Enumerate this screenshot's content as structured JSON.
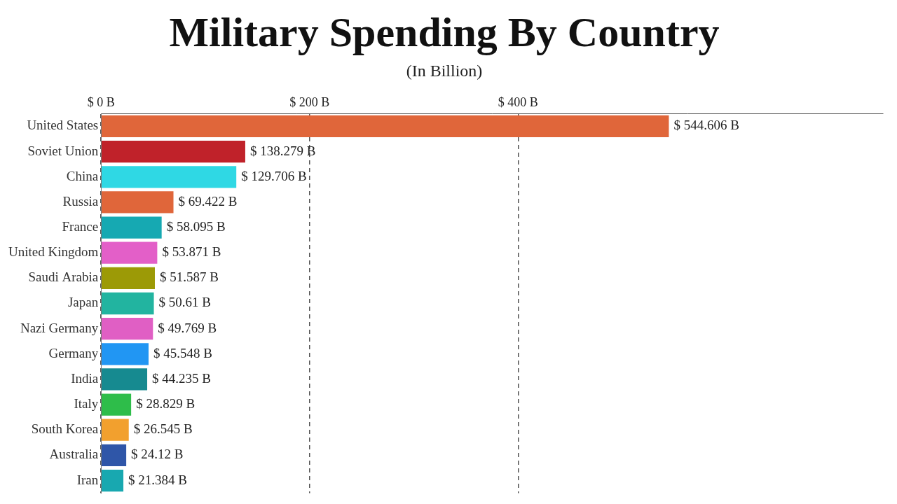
{
  "chart_data": {
    "type": "bar",
    "title": "Military Spending By Country",
    "subtitle": "(In Billion)",
    "orientation": "horizontal",
    "categories": [
      "United States",
      "Soviet Union",
      "China",
      "Russia",
      "France",
      "United Kingdom",
      "Saudi Arabia",
      "Japan",
      "Nazi Germany",
      "Germany",
      "India",
      "Italy",
      "South Korea",
      "Australia",
      "Iran"
    ],
    "values": [
      544.606,
      138.279,
      129.706,
      69.422,
      58.095,
      53.871,
      51.587,
      50.61,
      49.769,
      45.548,
      44.235,
      28.829,
      26.545,
      24.12,
      21.384
    ],
    "value_labels": [
      "$ 544.606 B",
      "$ 138.279 B",
      "$ 129.706 B",
      "$ 69.422 B",
      "$ 58.095 B",
      "$ 53.871 B",
      "$ 51.587 B",
      "$ 50.61 B",
      "$ 49.769 B",
      "$ 45.548 B",
      "$ 44.235 B",
      "$ 28.829 B",
      "$ 26.545 B",
      "$ 24.12 B",
      "$ 21.384 B"
    ],
    "colors": [
      "#e0663a",
      "#c0222a",
      "#2fd8e4",
      "#e0663a",
      "#16a9b2",
      "#e35fc8",
      "#9c9a06",
      "#22b4a0",
      "#e05fc4",
      "#2196f3",
      "#168a90",
      "#2ebd4a",
      "#f2a02e",
      "#2f56a8",
      "#18a8b0"
    ],
    "xlim": [
      0,
      750
    ],
    "xticks": [
      {
        "value": 0,
        "label": "$ 0 B"
      },
      {
        "value": 200,
        "label": "$ 200 B"
      },
      {
        "value": 400,
        "label": "$ 400 B"
      }
    ],
    "grid": true,
    "data_labels": true
  }
}
